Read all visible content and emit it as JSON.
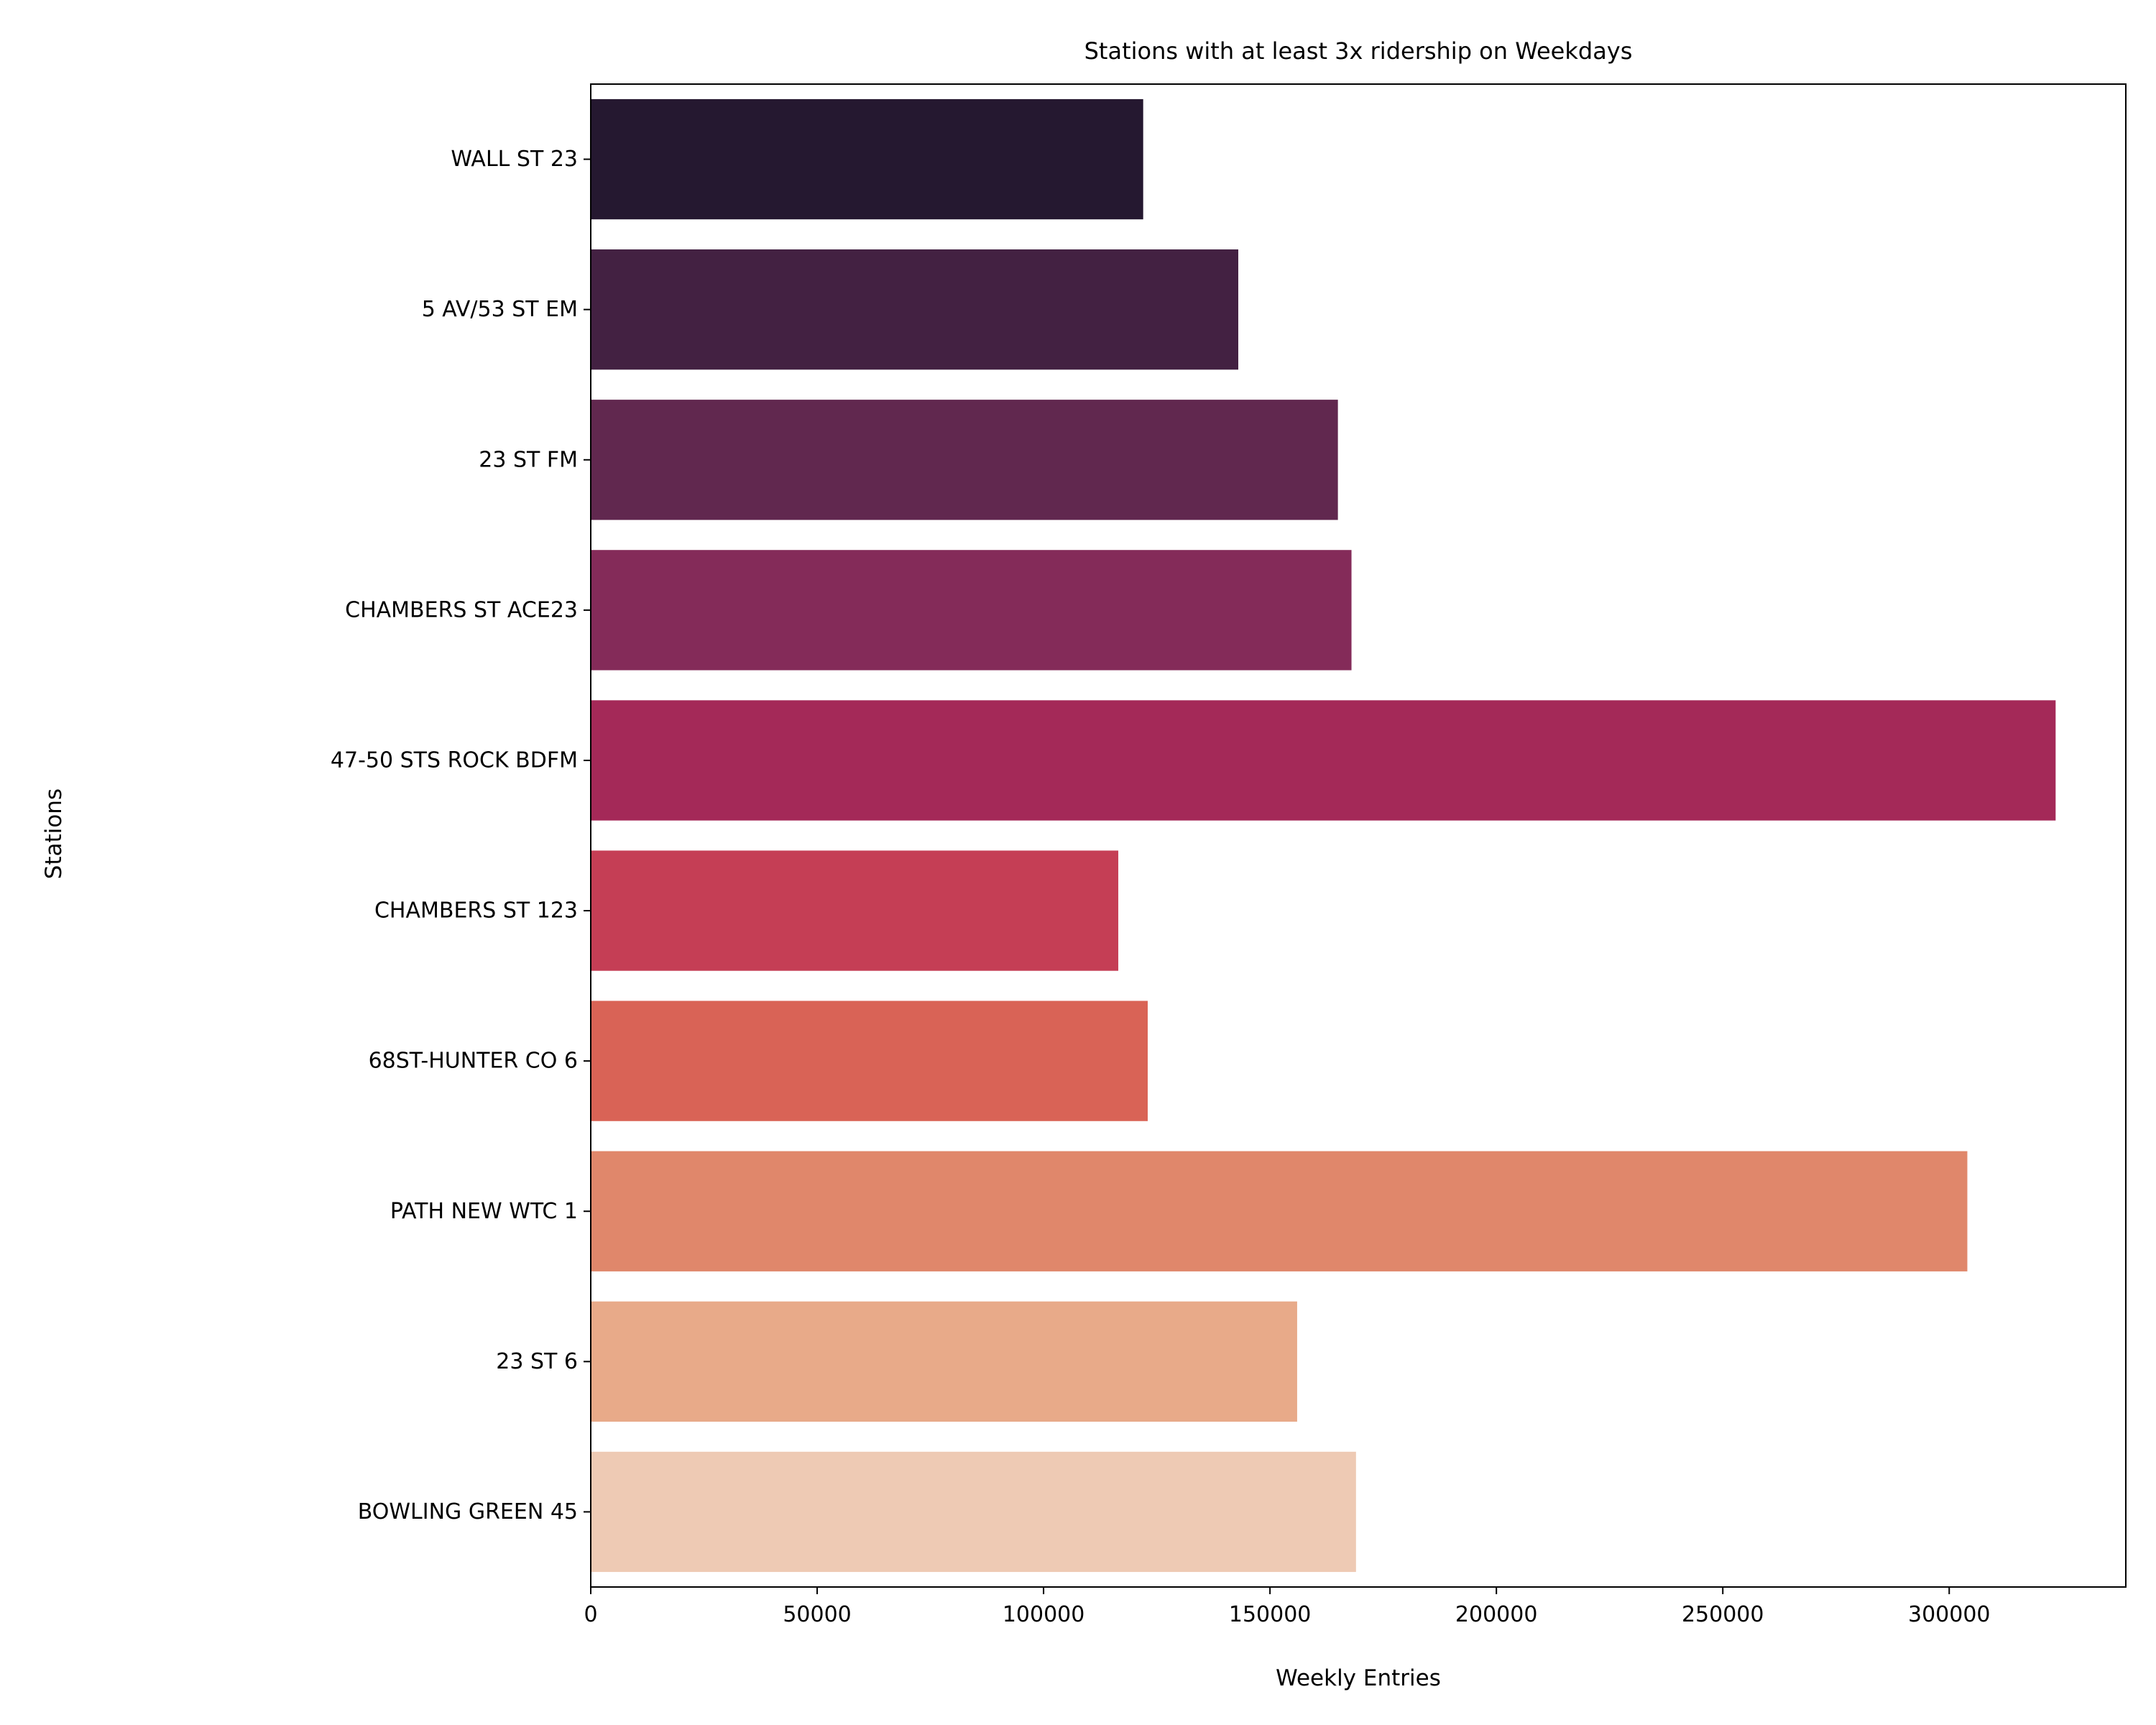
{
  "chart_data": {
    "type": "bar",
    "orientation": "horizontal",
    "title": "Stations with at least 3x ridership on Weekdays",
    "xlabel": "Weekly Entries",
    "ylabel": "Stations",
    "xlim": [
      0,
      339000
    ],
    "xticks": [
      0,
      50000,
      100000,
      150000,
      200000,
      250000,
      300000
    ],
    "grid": false,
    "categories": [
      "WALL ST 23",
      "5 AV/53 ST EM",
      "23 ST FM",
      "CHAMBERS ST ACE23",
      "47-50 STS ROCK BDFM",
      "CHAMBERS ST 123",
      "68ST-HUNTER CO 6",
      "PATH NEW WTC 1",
      "23 ST 6",
      "BOWLING GREEN 45"
    ],
    "values": [
      122000,
      143000,
      165000,
      168000,
      323500,
      116500,
      123000,
      304000,
      156000,
      169000
    ],
    "colors": [
      "#251830",
      "#432142",
      "#61284f",
      "#842b59",
      "#a42958",
      "#c53e55",
      "#d96356",
      "#e0876b",
      "#e8aa89",
      "#eecab4"
    ]
  }
}
